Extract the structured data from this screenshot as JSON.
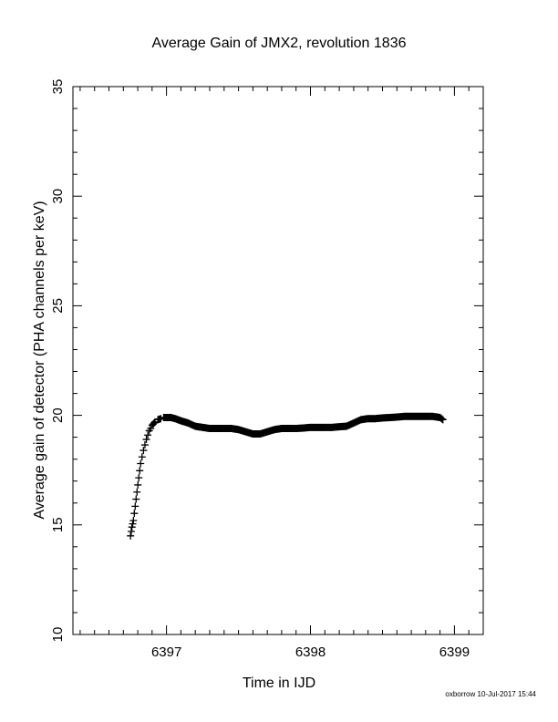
{
  "chart_data": {
    "type": "scatter",
    "title": "Average Gain of JMX2, revolution 1836",
    "xlabel": "Time in IJD",
    "ylabel": "Average gain of detector (PHA channels per keV)",
    "xlim": [
      6396.35,
      6399.2
    ],
    "ylim": [
      10,
      35
    ],
    "xticks": [
      6397,
      6398,
      6399
    ],
    "yticks": [
      10,
      15,
      20,
      25,
      30,
      35
    ],
    "x_minor_step": 0.1,
    "y_minor_step": 1,
    "marker": "plus",
    "grid": false,
    "series": [
      {
        "x": [
          6396.75,
          6396.755,
          6396.76,
          6396.765,
          6396.77,
          6396.82,
          6396.83,
          6396.84,
          6396.85,
          6396.86,
          6396.87,
          6396.88,
          6396.89,
          6396.9,
          6396.92,
          6396.94,
          6396.96,
          6396.98,
          6397.0,
          6397.03,
          6397.06,
          6397.1,
          6397.15,
          6397.2,
          6397.25,
          6397.3,
          6397.35,
          6397.4,
          6397.45,
          6397.5,
          6397.55,
          6397.6,
          6397.65,
          6397.7,
          6397.75,
          6397.8,
          6397.85,
          6397.9,
          6397.95,
          6398.0,
          6398.05,
          6398.1,
          6398.15,
          6398.2,
          6398.25,
          6398.3,
          6398.35,
          6398.4,
          6398.45,
          6398.5,
          6398.55,
          6398.6,
          6398.65,
          6398.7,
          6398.75,
          6398.8,
          6398.85,
          6398.9,
          6398.92
        ],
        "y": [
          14.5,
          14.7,
          14.9,
          15.05,
          15.2,
          17.8,
          18.1,
          18.4,
          18.65,
          18.9,
          19.1,
          19.3,
          19.4,
          19.55,
          19.7,
          19.8,
          19.85,
          19.9,
          19.9,
          19.9,
          19.85,
          19.75,
          19.65,
          19.5,
          19.45,
          19.4,
          19.4,
          19.4,
          19.4,
          19.35,
          19.25,
          19.15,
          19.15,
          19.25,
          19.35,
          19.4,
          19.4,
          19.4,
          19.42,
          19.45,
          19.45,
          19.45,
          19.45,
          19.48,
          19.5,
          19.65,
          19.8,
          19.85,
          19.85,
          19.88,
          19.9,
          19.92,
          19.95,
          19.95,
          19.95,
          19.95,
          19.95,
          19.9,
          19.8
        ]
      }
    ]
  },
  "footer": "oxborrow 10-Jul-2017 15:44"
}
